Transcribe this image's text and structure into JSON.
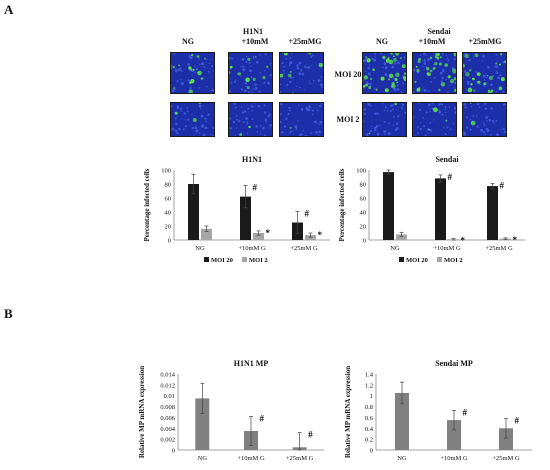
{
  "panel_a_label": "A",
  "panel_b_label": "B",
  "micrographs": {
    "h1n1": {
      "virus": "H1N1",
      "columns": [
        "NG",
        "+10mM",
        "+25mMG"
      ]
    },
    "sendai": {
      "virus": "Sendai",
      "columns": [
        "NG",
        "+10mM",
        "+25mMG"
      ]
    },
    "rows": [
      "MOI 20",
      "MOI 2"
    ]
  },
  "colors": {
    "moi20": "#1a1a1a",
    "moi2": "#a6a6a6",
    "mp_bar": "#808080",
    "stain_blue": "#1c2fa8",
    "stain_green": "#5ee04a"
  },
  "chart_data": [
    {
      "type": "bar",
      "title": "H1N1",
      "ylabel": "Percentage  infected cells",
      "categories": [
        "NG",
        "+10mM G",
        "+25mM G"
      ],
      "ylim": [
        0,
        100
      ],
      "yticks": [
        0,
        20,
        40,
        60,
        80,
        100
      ],
      "series": [
        {
          "name": "MOI 20",
          "values": [
            80,
            62,
            25
          ],
          "errors": [
            14,
            16,
            16
          ]
        },
        {
          "name": "MOI 2",
          "values": [
            16,
            10,
            7
          ],
          "errors": [
            4,
            3,
            3
          ]
        }
      ],
      "annotations": [
        {
          "category": "+10mM G",
          "series": "MOI 20",
          "text": "#"
        },
        {
          "category": "+10mM G",
          "series": "MOI 2",
          "text": "*"
        },
        {
          "category": "+25mM G",
          "series": "MOI 20",
          "text": "#"
        },
        {
          "category": "+25mM G",
          "series": "MOI 2",
          "text": "*"
        }
      ],
      "legend_position": "bottom"
    },
    {
      "type": "bar",
      "title": "Sendai",
      "ylabel": "Percentage  infected cells",
      "categories": [
        "NG",
        "+10mM G",
        "+25mM G"
      ],
      "ylim": [
        0,
        100
      ],
      "yticks": [
        0,
        20,
        40,
        60,
        80,
        100
      ],
      "series": [
        {
          "name": "MOI 20",
          "values": [
            97,
            88,
            77
          ],
          "errors": [
            3,
            5,
            4
          ]
        },
        {
          "name": "MOI 2",
          "values": [
            8,
            1,
            2
          ],
          "errors": [
            3,
            1,
            1
          ]
        }
      ],
      "annotations": [
        {
          "category": "+10mM G",
          "series": "MOI 20",
          "text": "#"
        },
        {
          "category": "+10mM G",
          "series": "MOI 2",
          "text": "*"
        },
        {
          "category": "+25mM G",
          "series": "MOI 20",
          "text": "#"
        },
        {
          "category": "+25mM G",
          "series": "MOI 2",
          "text": "*"
        }
      ],
      "legend_position": "bottom"
    },
    {
      "type": "bar",
      "title": "H1N1 MP",
      "ylabel": "Relative MP mRNA expression",
      "categories": [
        "NG",
        "+10mM G",
        "+25mM G"
      ],
      "ylim": [
        0,
        0.014
      ],
      "yticks": [
        "0",
        "0.002",
        "0.004",
        "0.006",
        "0.008",
        "0.01",
        "0.012",
        "0.014"
      ],
      "series": [
        {
          "values": [
            0.0095,
            0.0035,
            0.0005
          ],
          "errors": [
            0.0028,
            0.0027,
            0.0027
          ]
        }
      ],
      "annotations": [
        {
          "category": "+10mM G",
          "text": "#"
        },
        {
          "category": "+25mM G",
          "text": "#"
        }
      ]
    },
    {
      "type": "bar",
      "title": "Sendai MP",
      "ylabel": "Relative MP mRNA expression",
      "categories": [
        "NG",
        "+10mM G",
        "+25mM G"
      ],
      "ylim": [
        0,
        1.4
      ],
      "yticks": [
        "0",
        "0.2",
        "0.4",
        "0.6",
        "0.8",
        "1",
        "1.2",
        "1.4"
      ],
      "series": [
        {
          "values": [
            1.05,
            0.55,
            0.4
          ],
          "errors": [
            0.2,
            0.18,
            0.18
          ]
        }
      ],
      "annotations": [
        {
          "category": "+10mM G",
          "text": "#"
        },
        {
          "category": "+25mM G",
          "text": "#"
        }
      ]
    }
  ]
}
